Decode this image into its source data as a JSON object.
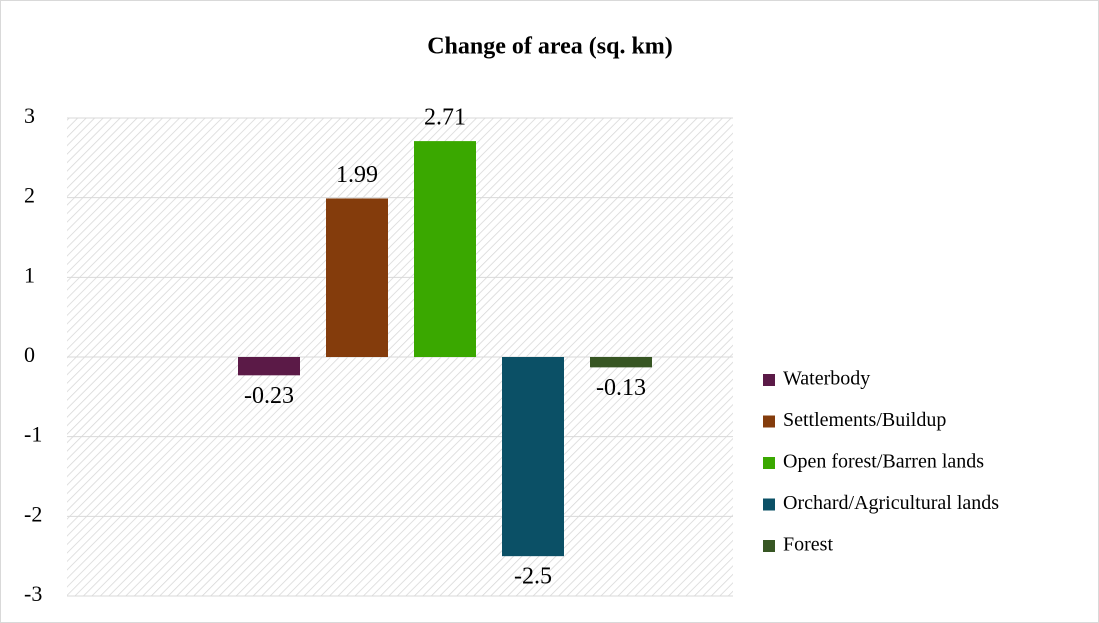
{
  "chart_data": {
    "type": "bar",
    "title": "Change of area (sq. km)",
    "series": [
      {
        "name": "Waterbody",
        "color": "#5b1a47",
        "values": [
          -0.23
        ]
      },
      {
        "name": "Settlements/Buildup",
        "color": "#843c0c",
        "values": [
          1.99
        ]
      },
      {
        "name": "Open forest/Barren lands",
        "color": "#3aa800",
        "values": [
          2.71
        ]
      },
      {
        "name": "Orchard/Agricultural lands",
        "color": "#0b5066",
        "values": [
          -2.5
        ]
      },
      {
        "name": "Forest",
        "color": "#375623",
        "values": [
          -0.13
        ]
      }
    ],
    "ylim": [
      -3,
      3
    ],
    "yticks": [
      -3,
      -2,
      -1,
      0,
      1,
      2,
      3
    ],
    "grid": true,
    "legend": "right"
  }
}
